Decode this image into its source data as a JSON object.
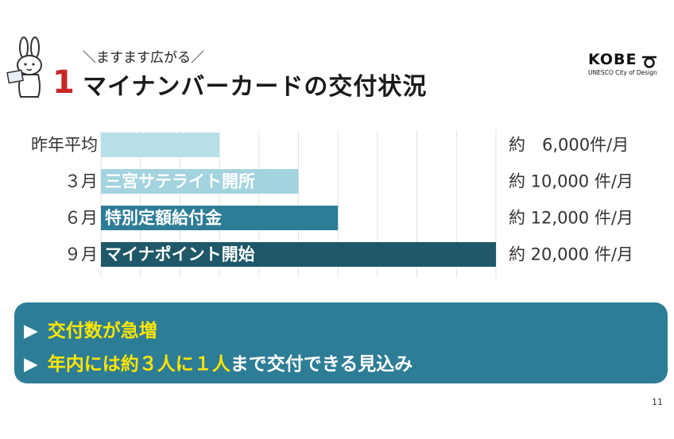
{
  "header": {
    "subtitle": "＼ますます広がる／",
    "badge_number": "1",
    "title": "マイナンバーカードの交付状況"
  },
  "logo": {
    "word": "KOBE",
    "tagline": "UNESCO City of Design"
  },
  "chart_data": {
    "type": "bar",
    "orientation": "horizontal",
    "categories": [
      "昨年平均",
      "３月",
      "６月",
      "９月"
    ],
    "values": [
      6000,
      10000,
      12000,
      20000
    ],
    "bar_labels": [
      "",
      "三宮サテライト開所",
      "特別定額給付金",
      "マイナポイント開始"
    ],
    "value_labels": [
      "約　6,000件/月",
      "約 10,000 件/月",
      "約 12,000 件/月",
      "約 20,000 件/月"
    ],
    "colors": [
      "#b6dfe8",
      "#a3d3df",
      "#2e7d96",
      "#1f5868"
    ],
    "xlim": [
      0,
      20000
    ],
    "grid": true
  },
  "summary": {
    "line1": {
      "bullet": "▶",
      "text": "交付数が急増"
    },
    "line2": {
      "bullet": "▶",
      "highlight": "年内には約３人に１人",
      "rest": "まで交付できる見込み"
    }
  },
  "page_number": "11"
}
